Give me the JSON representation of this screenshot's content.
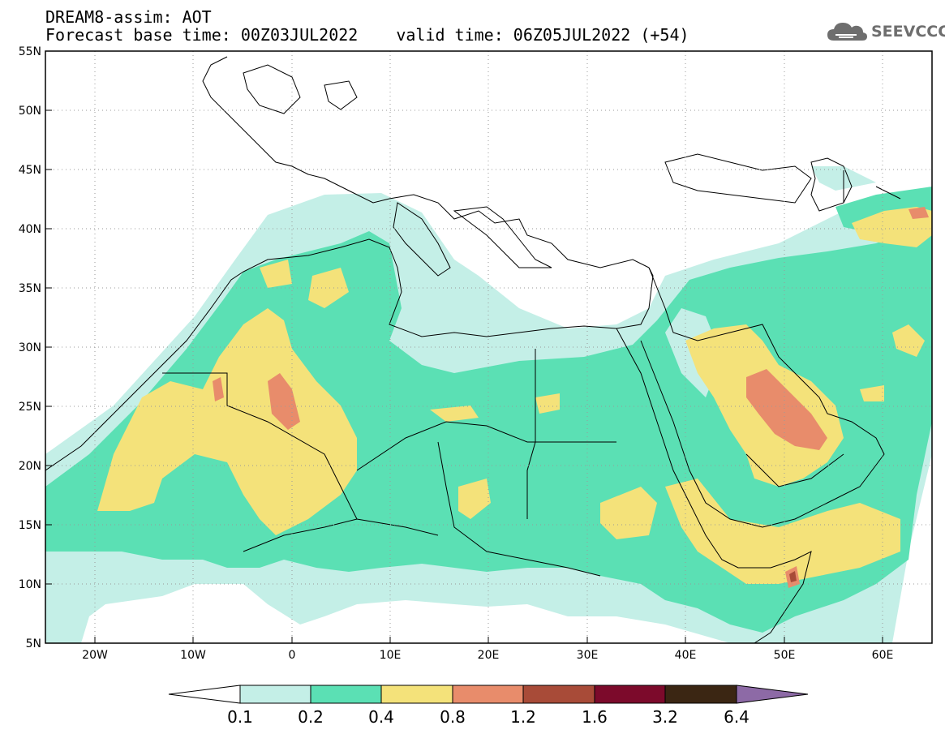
{
  "header": {
    "model_line": "DREAM8-assim: AOT",
    "base_time_label": "Forecast base time: 00Z03JUL2022",
    "valid_time_label": "valid time: 06Z05JUL2022 (+54)"
  },
  "logo": {
    "text": "SEEVCCC",
    "icon": "cloud-icon"
  },
  "map": {
    "lat_labels": [
      "55N",
      "50N",
      "45N",
      "40N",
      "35N",
      "30N",
      "25N",
      "20N",
      "15N",
      "10N",
      "5N"
    ],
    "lon_labels": [
      "20W",
      "10W",
      "0",
      "10E",
      "20E",
      "30E",
      "40E",
      "50E",
      "60E"
    ],
    "lat_range": [
      5,
      55
    ],
    "lon_range": [
      -25,
      65
    ],
    "grid": "dotted"
  },
  "colorbar": {
    "ticks": [
      "0.1",
      "0.2",
      "0.4",
      "0.8",
      "1.2",
      "1.6",
      "3.2",
      "6.4"
    ],
    "colors": [
      "#ffffff",
      "#c4efe7",
      "#5be0b4",
      "#f4e27a",
      "#e88c6b",
      "#a84b38",
      "#7c0a2b",
      "#3b2613",
      "#8d6aa6"
    ]
  }
}
